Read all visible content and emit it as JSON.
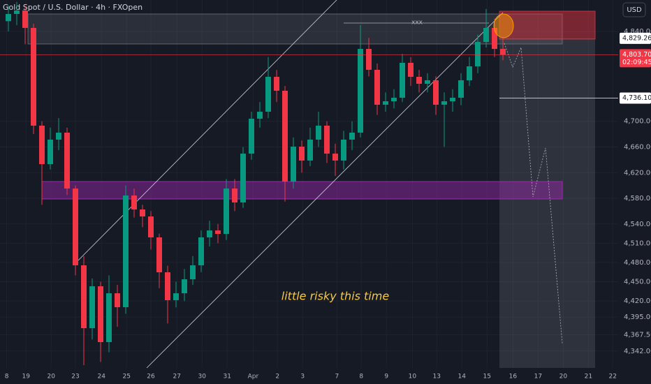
{
  "chart_data": {
    "type": "candlestick",
    "title": "Gold Spot / U.S. Dollar · 4h · FXOpen",
    "currency": "USD",
    "up_color": "#089981",
    "down_color": "#f23645",
    "x": [
      1,
      2,
      3,
      4,
      5,
      6,
      7,
      8,
      9,
      10,
      11,
      12,
      13,
      14,
      15,
      16,
      17,
      18,
      19,
      20,
      21,
      22,
      23,
      24,
      25,
      26,
      27,
      28,
      29,
      30,
      31,
      32,
      33,
      34,
      35,
      36,
      37,
      38,
      39,
      40,
      41,
      42,
      43,
      44,
      45,
      46,
      47,
      48,
      49,
      50,
      51,
      52,
      53,
      54,
      55,
      56,
      57,
      58,
      59,
      60
    ],
    "open": [
      4856.0,
      4867.2,
      4872.7,
      4845.5,
      4693.2,
      4633.3,
      4671.4,
      4682.3,
      4595.2,
      4475.6,
      4377.6,
      4442.9,
      4355.9,
      4432.0,
      4410.3,
      4584.4,
      4562.6,
      4551.7,
      4519.1,
      4464.7,
      4421.2,
      4432.0,
      4453.8,
      4475.6,
      4519.1,
      4529.9,
      4524.5,
      4595.2,
      4573.5,
      4649.6,
      4704.0,
      4714.9,
      4769.3,
      4747.6,
      4606.1,
      4660.5,
      4638.8,
      4671.4,
      4693.2,
      4649.6,
      4638.8,
      4671.4,
      4682.3,
      4812.8,
      4780.2,
      4725.8,
      4731.2,
      4736.7,
      4791.1,
      4769.3,
      4758.4,
      4763.9,
      4725.8,
      4731.2,
      4736.7,
      4763.9,
      4785.6,
      4823.7,
      4845.5,
      4812.8
    ],
    "high": [
      4880,
      4886,
      4880,
      4852,
      4700,
      4690,
      4705,
      4690,
      4600,
      4490,
      4455,
      4450,
      4460,
      4445,
      4600,
      4595,
      4570,
      4560,
      4525,
      4475,
      4450,
      4470,
      4490,
      4530,
      4545,
      4540,
      4610,
      4610,
      4660,
      4715,
      4730,
      4800,
      4780,
      4755,
      4675,
      4670,
      4690,
      4715,
      4700,
      4665,
      4685,
      4700,
      4850,
      4830,
      4790,
      4745,
      4750,
      4805,
      4800,
      4780,
      4775,
      4770,
      4745,
      4750,
      4775,
      4800,
      4835,
      4875,
      4860,
      4830
    ],
    "low": [
      4840,
      4850,
      4820,
      4680,
      4570,
      4625,
      4655,
      4585,
      4460,
      4320,
      4360,
      4325,
      4340,
      4380,
      4400,
      4550,
      4535,
      4500,
      4440,
      4385,
      4410,
      4420,
      4445,
      4465,
      4505,
      4510,
      4515,
      4560,
      4565,
      4640,
      4690,
      4705,
      4730,
      4575,
      4595,
      4620,
      4630,
      4660,
      4635,
      4615,
      4625,
      4655,
      4675,
      4770,
      4710,
      4715,
      4720,
      4730,
      4755,
      4745,
      4745,
      4710,
      4660,
      4715,
      4725,
      4755,
      4775,
      4815,
      4800,
      4795
    ],
    "close": [
      4867.2,
      4872.7,
      4845.5,
      4693.2,
      4633.3,
      4671.4,
      4682.3,
      4595.2,
      4475.6,
      4377.6,
      4442.9,
      4355.9,
      4432.0,
      4410.3,
      4584.4,
      4562.6,
      4551.7,
      4519.1,
      4464.7,
      4421.2,
      4432.0,
      4453.8,
      4475.6,
      4519.1,
      4529.9,
      4524.5,
      4595.2,
      4573.5,
      4649.6,
      4704.0,
      4714.9,
      4769.3,
      4747.6,
      4606.1,
      4660.5,
      4638.8,
      4671.4,
      4693.2,
      4649.6,
      4638.8,
      4671.4,
      4682.3,
      4812.8,
      4780.2,
      4725.8,
      4731.2,
      4736.7,
      4791.1,
      4769.3,
      4758.4,
      4763.9,
      4725.8,
      4731.2,
      4736.7,
      4763.9,
      4785.6,
      4823.7,
      4845.5,
      4812.8,
      4803.7
    ],
    "xlim": [
      0,
      73.75
    ],
    "ylim": [
      4320,
      4889
    ],
    "xticks": [
      {
        "value": 0.8,
        "label": "8"
      },
      {
        "value": 3.1,
        "label": "19"
      },
      {
        "value": 6.1,
        "label": "20"
      },
      {
        "value": 9,
        "label": "23"
      },
      {
        "value": 12.1,
        "label": "24"
      },
      {
        "value": 15.1,
        "label": "25"
      },
      {
        "value": 18,
        "label": "26"
      },
      {
        "value": 21.1,
        "label": "27"
      },
      {
        "value": 24.1,
        "label": "30"
      },
      {
        "value": 27.1,
        "label": "31"
      },
      {
        "value": 30.2,
        "label": "Apr"
      },
      {
        "value": 33.1,
        "label": "2"
      },
      {
        "value": 36.1,
        "label": "3"
      },
      {
        "value": 40.2,
        "label": "7"
      },
      {
        "value": 43.1,
        "label": "8"
      },
      {
        "value": 46.1,
        "label": "9"
      },
      {
        "value": 49.2,
        "label": "10"
      },
      {
        "value": 52.1,
        "label": "13"
      },
      {
        "value": 55.1,
        "label": "14"
      },
      {
        "value": 58.1,
        "label": "15"
      },
      {
        "value": 61.2,
        "label": "16"
      },
      {
        "value": 64.2,
        "label": "17"
      },
      {
        "value": 67.2,
        "label": "20"
      },
      {
        "value": 70.2,
        "label": "21"
      },
      {
        "value": 73.1,
        "label": "22"
      }
    ],
    "yticks": [
      {
        "value": 4840,
        "label": "4,840.00"
      },
      {
        "value": 4700,
        "label": "4,700.00"
      },
      {
        "value": 4660,
        "label": "4,660.00"
      },
      {
        "value": 4620,
        "label": "4,620.00"
      },
      {
        "value": 4580,
        "label": "4,580.00"
      },
      {
        "value": 4540,
        "label": "4,540.00"
      },
      {
        "value": 4510,
        "label": "4,510.00"
      },
      {
        "value": 4480,
        "label": "4,480.00"
      },
      {
        "value": 4450,
        "label": "4,450.00"
      },
      {
        "value": 4420,
        "label": "4,420.00"
      },
      {
        "value": 4395,
        "label": "4,395.00"
      },
      {
        "value": 4367.5,
        "label": "4,367.50"
      },
      {
        "value": 4342,
        "label": "4,342.00"
      }
    ],
    "price_labels": [
      {
        "value": 4829.26,
        "label": "4,829.26"
      },
      {
        "value": 4803.7,
        "label": "4,803.70",
        "countdown": "02:09:45"
      },
      {
        "value": 4736.1,
        "label": "4,736.10"
      }
    ],
    "annotations": [
      "xxx",
      "little risky this time"
    ]
  }
}
